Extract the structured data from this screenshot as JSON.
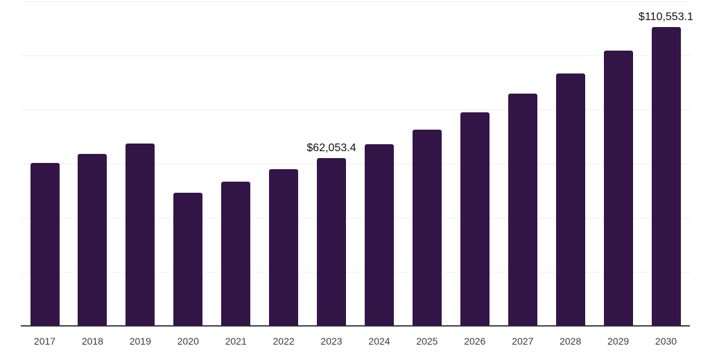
{
  "chart_data": {
    "type": "bar",
    "title": "",
    "xlabel": "",
    "ylabel": "",
    "categories": [
      "2017",
      "2018",
      "2019",
      "2020",
      "2021",
      "2022",
      "2023",
      "2024",
      "2025",
      "2026",
      "2027",
      "2028",
      "2029",
      "2030"
    ],
    "values": [
      60200,
      63600,
      67500,
      49300,
      53250,
      57900,
      62053.4,
      67200,
      72650,
      79000,
      85900,
      93400,
      101900,
      110553.1
    ],
    "data_labels": [
      {
        "category": "2023",
        "text": "$62,053.4"
      },
      {
        "category": "2030",
        "text": "$110,553.1"
      }
    ],
    "ylim": [
      0,
      120000
    ],
    "gridline_step": 20000,
    "grid": true,
    "y_tick_labels_visible": false,
    "legend_position": "none",
    "colors": {
      "bar": "#331548",
      "gridline": "#efefef",
      "axis_line": "#444444",
      "tick_label": "#3c3c3c",
      "data_label": "#111111",
      "background": "#ffffff"
    }
  }
}
